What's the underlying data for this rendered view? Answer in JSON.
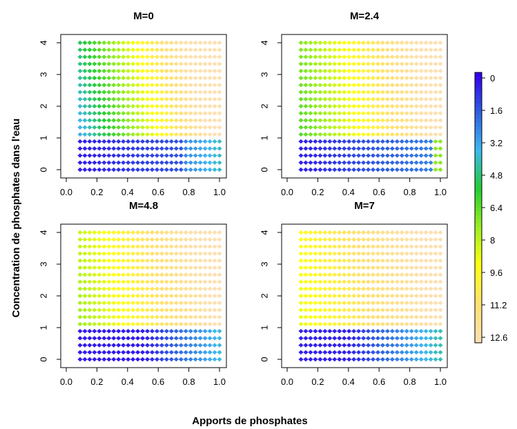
{
  "chart_data": {
    "type": "scatter",
    "xlabel": "Apports de phosphates",
    "ylabel": "Concentration de phosphates dans l'eau",
    "x_range": [
      0.08,
      1.0
    ],
    "y_range": [
      0,
      4.1
    ],
    "x_ticks": [
      0.0,
      0.2,
      0.4,
      0.6,
      0.8,
      1.0
    ],
    "x_tick_labels": [
      "0.0",
      "0.2",
      "0.4",
      "0.6",
      "0.8",
      "1.0"
    ],
    "y_ticks": [
      0,
      1,
      2,
      3,
      4
    ],
    "y_tick_labels": [
      "0",
      "1",
      "2",
      "3",
      "4"
    ],
    "grid": false,
    "panels": [
      {
        "title": "M=0",
        "x_start": 0.08
      },
      {
        "title": "M=2.4",
        "x_start": 0.08
      },
      {
        "title": "M=4.8",
        "x_start": 0.08
      },
      {
        "title": "M=7",
        "x_start": 0.08
      }
    ],
    "colorbar": {
      "labels": [
        "0",
        "1.6",
        "3.2",
        "4.8",
        "6.4",
        "8",
        "9.6",
        "11.2",
        "12.6"
      ],
      "min": 0,
      "max": 12.6,
      "colors": [
        "#3300ee",
        "#2f5fe0",
        "#3fb8f0",
        "#22cc33",
        "#99ee22",
        "#ffff11",
        "#ffe070",
        "#fde0b0"
      ]
    }
  }
}
